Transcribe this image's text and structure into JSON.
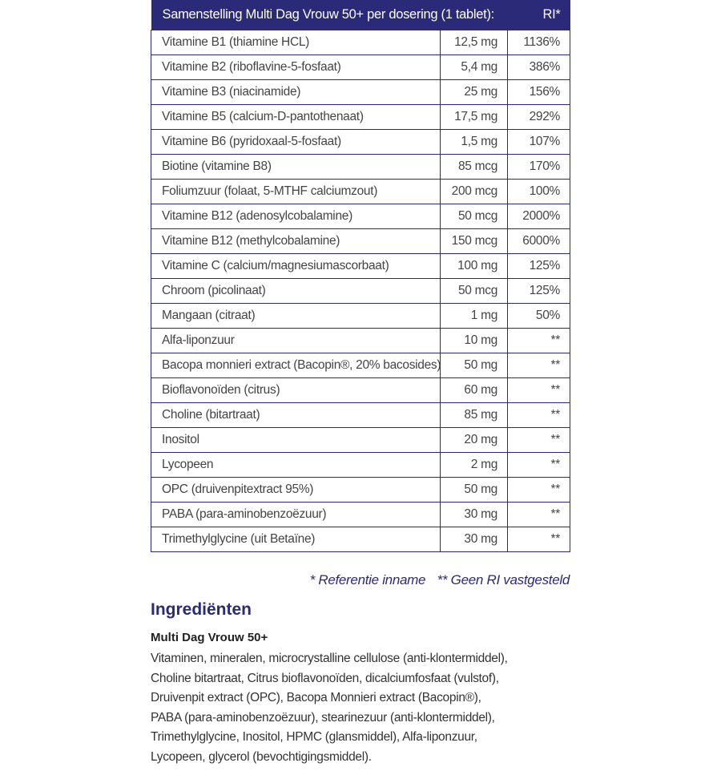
{
  "table": {
    "header": {
      "title": "Samenstelling Multi Dag Vrouw 50+ per dosering (1 tablet):",
      "ri": "RI*"
    },
    "rows": [
      {
        "name": "Vitamine B1 (thiamine HCL)",
        "amount": "12,5 mg",
        "ri": "1136%"
      },
      {
        "name": "Vitamine B2 (riboflavine-5-fosfaat)",
        "amount": "5,4 mg",
        "ri": "386%"
      },
      {
        "name": "Vitamine B3 (niacinamide)",
        "amount": "25 mg",
        "ri": "156%"
      },
      {
        "name": "Vitamine B5 (calcium-D-pantothenaat)",
        "amount": "17,5 mg",
        "ri": "292%"
      },
      {
        "name": "Vitamine B6 (pyridoxaal-5-fosfaat)",
        "amount": "1,5 mg",
        "ri": "107%"
      },
      {
        "name": "Biotine (vitamine B8)",
        "amount": "85 mcg",
        "ri": "170%"
      },
      {
        "name": "Foliumzuur (folaat, 5-MTHF calciumzout)",
        "amount": "200 mcg",
        "ri": "100%"
      },
      {
        "name": "Vitamine B12 (adenosylcobalamine)",
        "amount": "50 mcg",
        "ri": "2000%"
      },
      {
        "name": "Vitamine B12 (methylcobalamine)",
        "amount": "150 mcg",
        "ri": "6000%"
      },
      {
        "name": "Vitamine C (calcium/magnesiumascorbaat)",
        "amount": "100 mg",
        "ri": "125%"
      },
      {
        "name": "Chroom (picolinaat)",
        "amount": "50 mcg",
        "ri": "125%"
      },
      {
        "name": "Mangaan (citraat)",
        "amount": "1 mg",
        "ri": "50%"
      },
      {
        "name": "Alfa-liponzuur",
        "amount": "10 mg",
        "ri": "**"
      },
      {
        "name": "Bacopa monnieri extract (Bacopin®, 20% bacosides)",
        "amount": "50 mg",
        "ri": "**"
      },
      {
        "name": "Bioflavonoïden (citrus)",
        "amount": "60 mg",
        "ri": "**"
      },
      {
        "name": "Choline (bitartraat)",
        "amount": "85 mg",
        "ri": "**"
      },
      {
        "name": "Inositol",
        "amount": "20 mg",
        "ri": "**"
      },
      {
        "name": "Lycopeen",
        "amount": "2 mg",
        "ri": "**"
      },
      {
        "name": "OPC (druivenpitextract 95%)",
        "amount": "50 mg",
        "ri": "**"
      },
      {
        "name": "PABA (para-aminobenzoëzuur)",
        "amount": "30 mg",
        "ri": "**"
      },
      {
        "name": "Trimethylglycine (uit Betaïne)",
        "amount": "30 mg",
        "ri": "**"
      }
    ]
  },
  "footnotes": {
    "ri": "* Referentie inname",
    "none": "** Geen RI vastgesteld"
  },
  "ingredients": {
    "title": "Ingrediënten",
    "product": "Multi Dag Vrouw 50+",
    "lines": [
      "Vitaminen, mineralen, microcrystalline cellulose (anti-klontermiddel),",
      "Choline bitartraat, Citrus bioflavonoïden, dicalciumfosfaat (vulstof),",
      "Druivenpit extract (OPC), Bacopa Monnieri extract (Bacopin®),",
      "PABA (para-aminobenzoëzuur), stearinezuur (anti-klontermiddel),",
      "Trimethylglycine, Inositol, HPMC (glansmiddel), Alfa-liponzuur,",
      "Lycopeen, glycerol (bevochtigingsmiddel)."
    ]
  },
  "colors": {
    "brand": "#2b2a78"
  }
}
